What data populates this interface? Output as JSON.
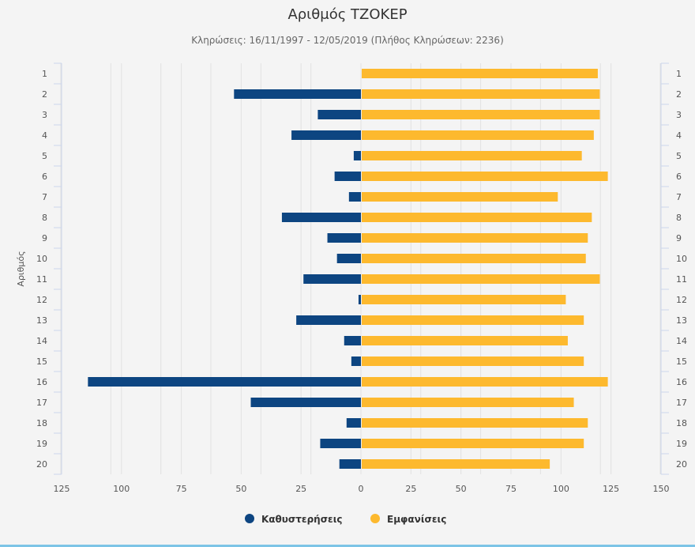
{
  "chart_data": {
    "type": "bar",
    "orientation": "horizontal",
    "title": "Αριθμός ΤΖΟΚΕΡ",
    "subtitle": "Κληρώσεις: 16/11/1997 - 12/05/2019 (Πλήθος Κληρώσεων: 2236)",
    "ylabel": "Αριθμός",
    "categories": [
      "1",
      "2",
      "3",
      "4",
      "5",
      "6",
      "7",
      "8",
      "9",
      "10",
      "11",
      "12",
      "13",
      "14",
      "15",
      "16",
      "17",
      "18",
      "19",
      "20"
    ],
    "series": [
      {
        "name": "Καθυστερήσεις",
        "color": "#0d4581",
        "axis": "left",
        "values": [
          0,
          53,
          18,
          29,
          3,
          11,
          5,
          33,
          14,
          10,
          24,
          1,
          27,
          7,
          4,
          114,
          46,
          6,
          17,
          9
        ]
      },
      {
        "name": "Εμφανίσεις",
        "color": "#fdb92e",
        "axis": "right",
        "values": [
          118,
          119,
          119,
          116,
          110,
          123,
          98,
          115,
          113,
          112,
          119,
          102,
          111,
          103,
          111,
          123,
          106,
          113,
          111,
          94
        ]
      }
    ],
    "left_axis": {
      "range": [
        0,
        125
      ],
      "reversed": true,
      "ticks": [
        "125",
        "100",
        "75",
        "50",
        "25",
        "0"
      ]
    },
    "right_axis": {
      "range": [
        0,
        150
      ],
      "ticks": [
        "0",
        "25",
        "50",
        "75",
        "100",
        "125",
        "150"
      ]
    },
    "grid": true,
    "legend_position": "bottom"
  }
}
